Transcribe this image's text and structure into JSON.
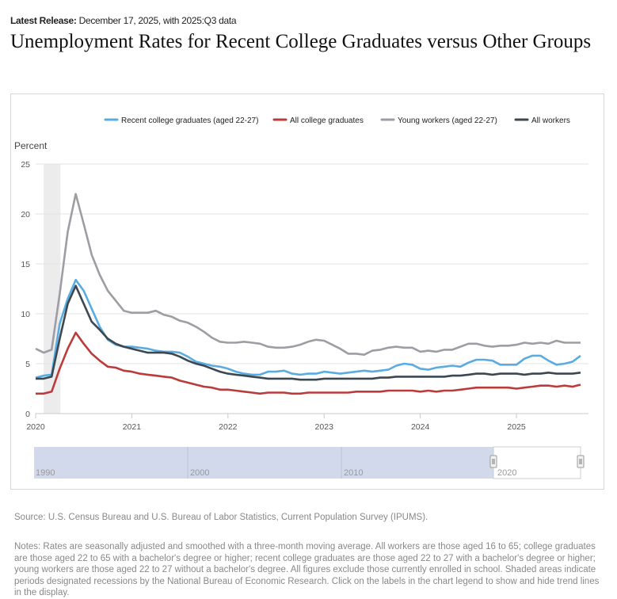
{
  "header": {
    "release_label": "Latest Release:",
    "release_text": "December 17, 2025, with 2025:Q3 data",
    "title": "Unemployment Rates for Recent College Graduates versus Other Groups"
  },
  "chart_data": {
    "type": "line",
    "title": "Unemployment Rates for Recent College Graduates versus Other Groups",
    "ylabel": "Percent",
    "ylim": [
      0,
      25
    ],
    "yticks": [
      "0",
      "5",
      "10",
      "15",
      "20",
      "25"
    ],
    "xticks": [
      "2020",
      "2021",
      "2022",
      "2023",
      "2024",
      "2025"
    ],
    "x_start": "2020-01",
    "x_end": "2025-09",
    "frequency": "monthly",
    "grid": true,
    "legend_placement": "top",
    "recession_shading": [
      "2020-02",
      "2020-04"
    ],
    "series": [
      {
        "name": "Recent college graduates (aged 22-27)",
        "color": "#5aace0",
        "values": [
          3.6,
          3.8,
          3.9,
          9,
          11.5,
          13.4,
          12.3,
          10.5,
          8.7,
          7.4,
          6.9,
          6.7,
          6.7,
          6.6,
          6.5,
          6.3,
          6.2,
          6.2,
          6.1,
          5.7,
          5.2,
          5.0,
          4.8,
          4.7,
          4.5,
          4.2,
          4.0,
          3.9,
          3.9,
          4.2,
          4.2,
          4.3,
          4.0,
          3.9,
          4.0,
          4.0,
          4.2,
          4.1,
          4.0,
          4.1,
          4.2,
          4.3,
          4.2,
          4.3,
          4.4,
          4.8,
          5.0,
          4.9,
          4.5,
          4.4,
          4.6,
          4.7,
          4.8,
          4.7,
          5.1,
          5.4,
          5.4,
          5.3,
          4.9,
          4.9,
          4.9,
          5.5,
          5.8,
          5.8,
          5.3,
          4.9,
          5.0,
          5.2,
          5.8
        ]
      },
      {
        "name": "All college graduates",
        "color": "#bb3b3b",
        "values": [
          2.0,
          2.0,
          2.2,
          4.5,
          6.5,
          8.1,
          7.0,
          6.0,
          5.3,
          4.7,
          4.6,
          4.3,
          4.2,
          4.0,
          3.9,
          3.8,
          3.7,
          3.6,
          3.3,
          3.1,
          2.9,
          2.7,
          2.6,
          2.4,
          2.4,
          2.3,
          2.2,
          2.1,
          2.0,
          2.1,
          2.1,
          2.1,
          2.0,
          2.0,
          2.1,
          2.1,
          2.1,
          2.1,
          2.1,
          2.1,
          2.2,
          2.2,
          2.2,
          2.2,
          2.3,
          2.3,
          2.3,
          2.3,
          2.2,
          2.3,
          2.2,
          2.3,
          2.3,
          2.4,
          2.5,
          2.6,
          2.6,
          2.6,
          2.6,
          2.6,
          2.5,
          2.6,
          2.7,
          2.8,
          2.8,
          2.7,
          2.8,
          2.7,
          2.9
        ]
      },
      {
        "name": "Young workers (aged 22-27)",
        "color": "#9d9da3",
        "values": [
          6.5,
          6.1,
          6.4,
          12,
          18.2,
          22.0,
          19,
          15.9,
          13.9,
          12.3,
          11.3,
          10.3,
          10.1,
          10.1,
          10.1,
          10.3,
          9.9,
          9.7,
          9.3,
          9.1,
          8.7,
          8.2,
          7.6,
          7.2,
          7.1,
          7.1,
          7.2,
          7.1,
          7.0,
          6.7,
          6.6,
          6.6,
          6.7,
          6.9,
          7.2,
          7.4,
          7.3,
          6.9,
          6.5,
          6.0,
          6.0,
          5.9,
          6.3,
          6.4,
          6.6,
          6.7,
          6.6,
          6.6,
          6.2,
          6.3,
          6.2,
          6.4,
          6.4,
          6.7,
          7.0,
          7.0,
          6.8,
          6.7,
          6.8,
          6.8,
          6.9,
          7.1,
          7.0,
          7.1,
          7.0,
          7.3,
          7.1,
          7.1,
          7.1
        ]
      },
      {
        "name": "All workers",
        "color": "#3d4750",
        "values": [
          3.5,
          3.5,
          3.7,
          7.5,
          11,
          12.8,
          11,
          9.2,
          8.4,
          7.5,
          7.0,
          6.7,
          6.5,
          6.3,
          6.1,
          6.1,
          6.1,
          6.0,
          5.7,
          5.3,
          5.0,
          4.8,
          4.5,
          4.2,
          4.0,
          3.9,
          3.8,
          3.7,
          3.6,
          3.5,
          3.5,
          3.5,
          3.5,
          3.4,
          3.4,
          3.4,
          3.5,
          3.5,
          3.5,
          3.5,
          3.5,
          3.5,
          3.5,
          3.6,
          3.6,
          3.7,
          3.7,
          3.7,
          3.7,
          3.7,
          3.7,
          3.7,
          3.8,
          3.8,
          3.9,
          4.0,
          4.0,
          3.9,
          4.0,
          4.0,
          4.0,
          3.9,
          4.0,
          4.0,
          4.1,
          4.0,
          4.0,
          4.0,
          4.1
        ]
      }
    ],
    "navigator": {
      "labels": [
        "1990",
        "2000",
        "2010",
        "2020"
      ],
      "selected_range": [
        "2020-01",
        "2025-09"
      ]
    }
  },
  "footer": {
    "source": "Source: U.S. Census Bureau and U.S. Bureau of Labor Statistics, Current Population Survey (IPUMS).",
    "notes": "Notes: Rates are seasonally adjusted and smoothed with a three-month moving average. All workers are those aged 16 to 65; college graduates are those aged 22 to 65 with a bachelor's degree or higher; recent college graduates are those aged 22 to 27 with a bachelor's degree or higher; young workers are those aged 22 to 27 without a bachelor's degree. All figures exclude those currently enrolled in school. Shaded areas indicate periods designated recessions by the National Bureau of Economic Research. Click on the labels in the chart legend to show and hide trend lines in the display."
  }
}
